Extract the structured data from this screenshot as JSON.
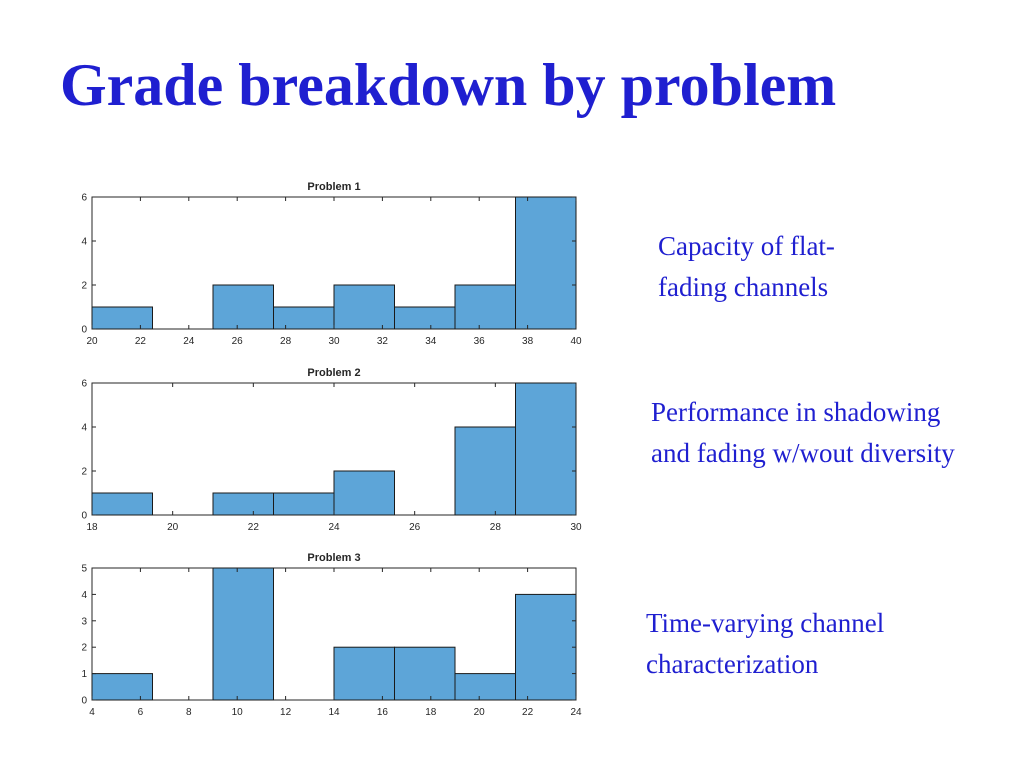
{
  "slide": {
    "title": "Grade breakdown by problem"
  },
  "captions": [
    "Capacity of flat-fading channels",
    "Performance in shadowing and fading w/wout diversity",
    "Time-varying channel characterization"
  ],
  "colors": {
    "title": "#1f1fd0",
    "bar_fill": "#5da5d8",
    "bar_edge": "#1a1a1a"
  },
  "chart_data": [
    {
      "type": "bar",
      "title": "Problem 1",
      "xlim": [
        20,
        40
      ],
      "ylim": [
        0,
        6
      ],
      "xticks": [
        20,
        22,
        24,
        26,
        28,
        30,
        32,
        34,
        36,
        38,
        40
      ],
      "yticks": [
        0,
        2,
        4,
        6
      ],
      "bin_edges": [
        20,
        22.5,
        25,
        27.5,
        30,
        32.5,
        35,
        37.5,
        40
      ],
      "values": [
        1,
        0,
        2,
        1,
        2,
        1,
        2,
        6
      ],
      "grid": false
    },
    {
      "type": "bar",
      "title": "Problem 2",
      "xlim": [
        18,
        30
      ],
      "ylim": [
        0,
        6
      ],
      "xticks": [
        18,
        20,
        22,
        24,
        26,
        28,
        30
      ],
      "yticks": [
        0,
        2,
        4,
        6
      ],
      "bin_edges": [
        18,
        19.5,
        21,
        22.5,
        24,
        25.5,
        27,
        28.5,
        30
      ],
      "values": [
        1,
        0,
        1,
        1,
        2,
        0,
        4,
        6
      ],
      "grid": false
    },
    {
      "type": "bar",
      "title": "Problem 3",
      "xlim": [
        4,
        24
      ],
      "ylim": [
        0,
        5
      ],
      "xticks": [
        4,
        6,
        8,
        10,
        12,
        14,
        16,
        18,
        20,
        22,
        24
      ],
      "yticks": [
        0,
        1,
        2,
        3,
        4,
        5
      ],
      "bin_edges": [
        4,
        6.5,
        9,
        11.5,
        14,
        16.5,
        19,
        21.5,
        24
      ],
      "values": [
        1,
        0,
        5,
        0,
        2,
        2,
        1,
        4
      ],
      "grid": false
    }
  ]
}
